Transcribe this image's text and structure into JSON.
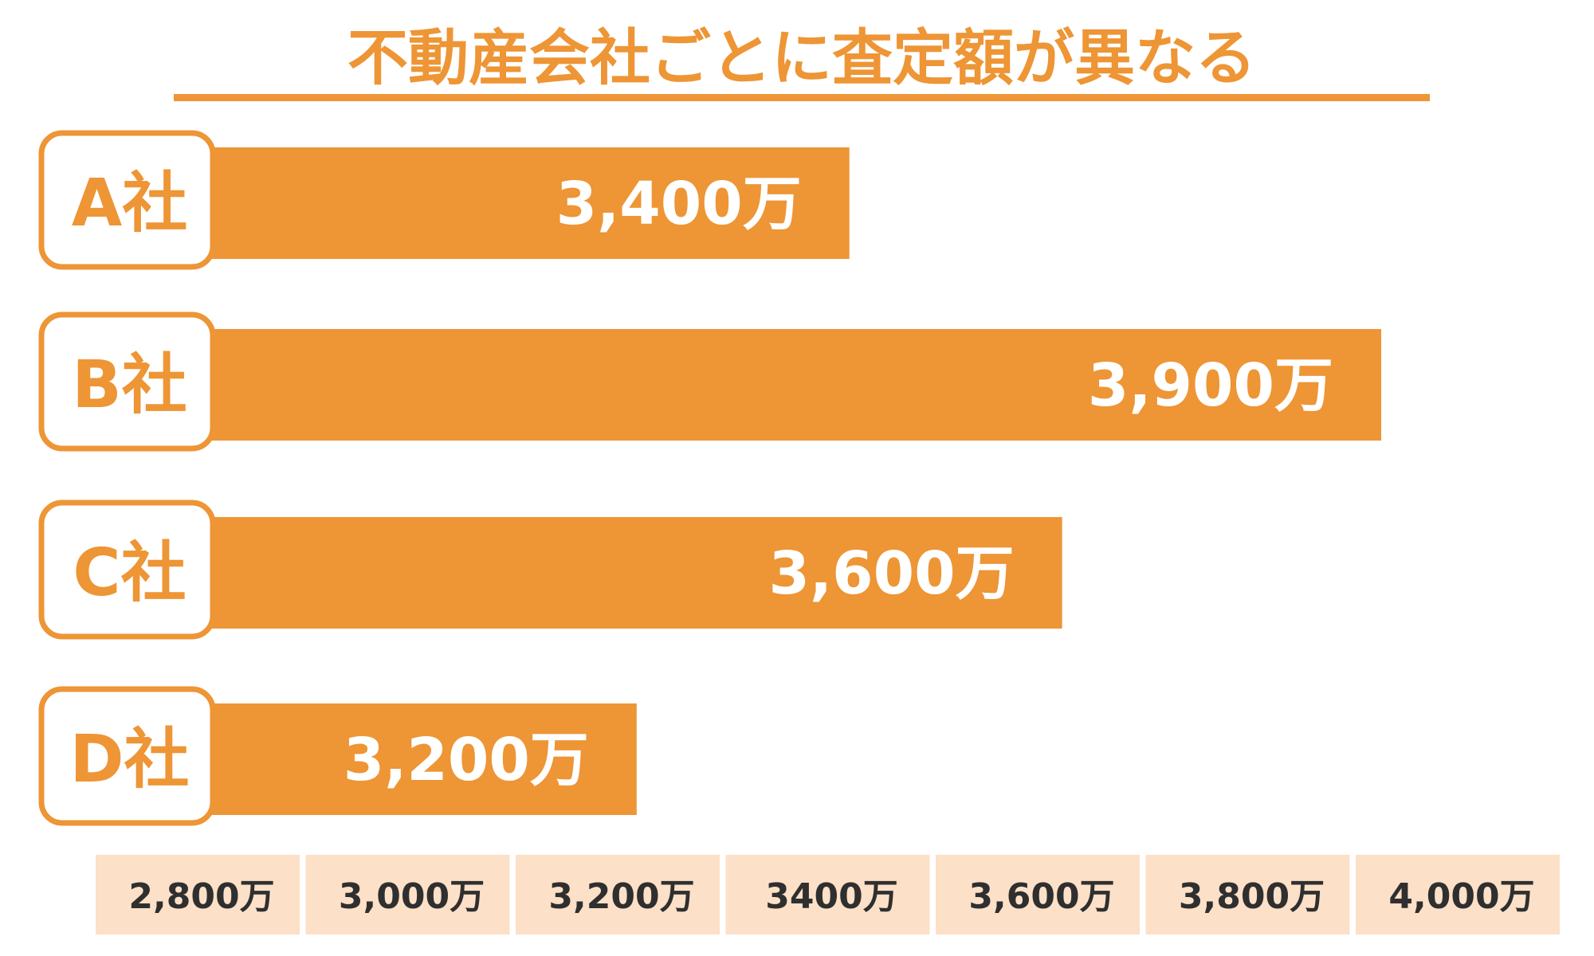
{
  "title": "不動産会社ごとに査定額が異なる",
  "colors": {
    "bar": "#ee9535",
    "tick_bg": "#fde0c8",
    "tick_text": "#2f2f2f",
    "label_box_border": "#ee9535",
    "background": "#ffffff"
  },
  "chart_data": {
    "type": "bar",
    "orientation": "horizontal",
    "title": "不動産会社ごとに査定額が異なる",
    "categories": [
      "A社",
      "B社",
      "C社",
      "D社"
    ],
    "values": [
      3400,
      3900,
      3600,
      3200
    ],
    "value_labels": [
      "3,400万",
      "3,900万",
      "3,600万",
      "3,200万"
    ],
    "xlim": [
      2800,
      4000
    ],
    "x_ticks": [
      2800,
      3000,
      3200,
      3400,
      3600,
      3800,
      4000
    ],
    "x_tick_labels": [
      "2,800万",
      "3,000万",
      "3,200万",
      "3400万",
      "3,600万",
      "3,800万",
      "4,000万"
    ],
    "grid": false,
    "legend": "none"
  }
}
